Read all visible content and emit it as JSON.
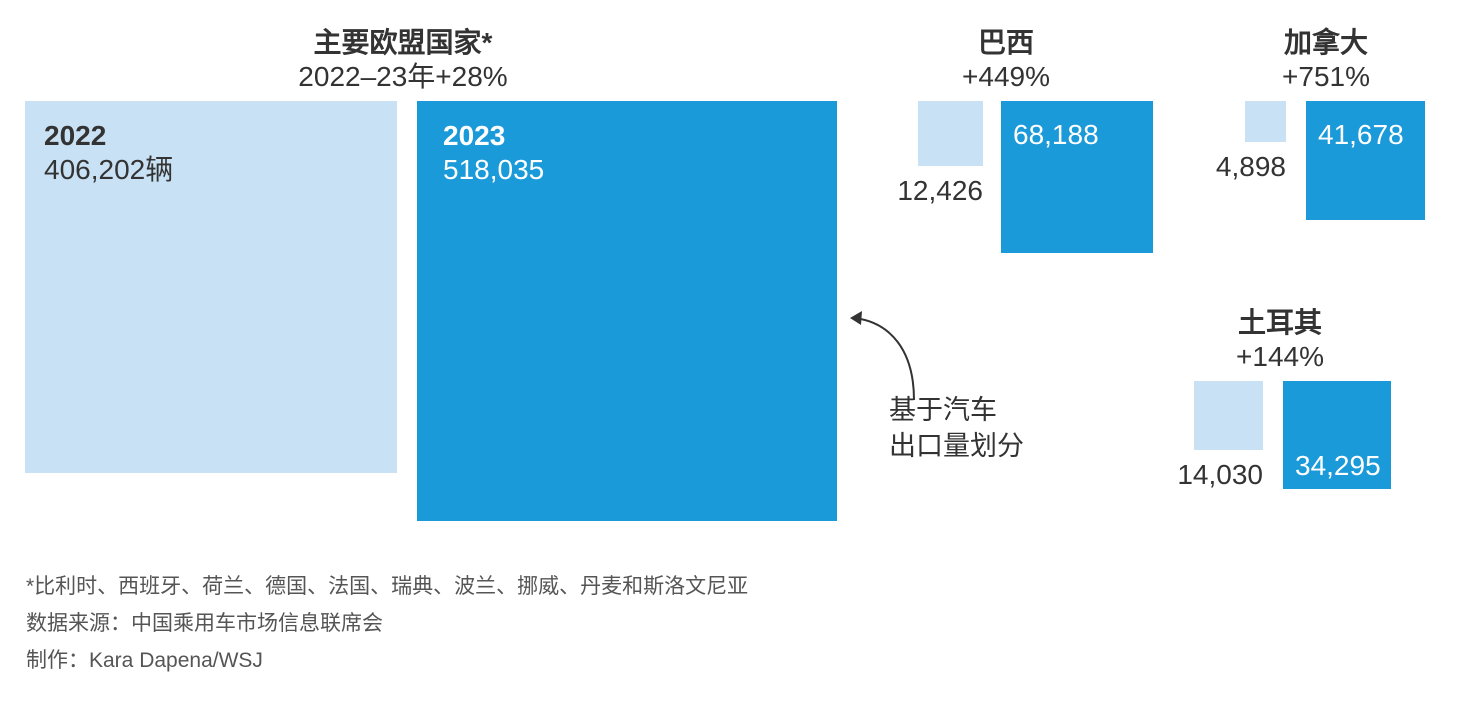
{
  "chart_data": {
    "type": "proportional-squares",
    "unit_label": "辆",
    "colors": {
      "2022": "#c9e1f4",
      "2023": "#1a9ad9",
      "text": "#333333"
    },
    "groups": [
      {
        "name": "主要欧盟国家*",
        "change": "2022–23年+28%",
        "year_labels": [
          "2022",
          "2023"
        ],
        "values": [
          406202,
          518035
        ],
        "value_labels": [
          "406,202辆",
          "518,035"
        ]
      },
      {
        "name": "巴西",
        "change": "+449%",
        "values": [
          12426,
          68188
        ],
        "value_labels": [
          "12,426",
          "68,188"
        ]
      },
      {
        "name": "加拿大",
        "change": "+751%",
        "values": [
          4898,
          41678
        ],
        "value_labels": [
          "4,898",
          "41,678"
        ]
      },
      {
        "name": "土耳其",
        "change": "+144%",
        "values": [
          14030,
          34295
        ],
        "value_labels": [
          "14,030",
          "34,295"
        ]
      }
    ],
    "annotation": [
      "基于汽车",
      "出口量划分"
    ]
  },
  "footer": [
    "*比利时、西班牙、荷兰、德国、法国、瑞典、波兰、挪威、丹麦和斯洛文尼亚",
    "数据来源：中国乘用车市场信息联席会",
    "制作：Kara Dapena/WSJ"
  ]
}
